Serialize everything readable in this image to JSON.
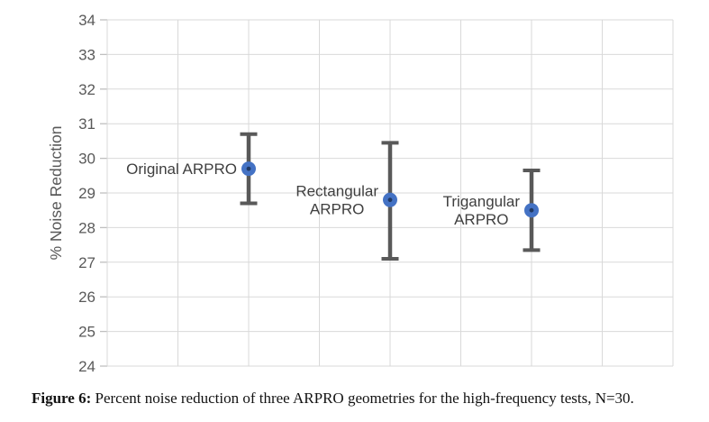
{
  "chart_data": {
    "type": "scatter",
    "title": "",
    "xlabel": "",
    "ylabel": "% Noise Reduction",
    "ylim": [
      24,
      34
    ],
    "ytick_step": 1,
    "xlim": [
      0,
      4
    ],
    "x_gridline_step": 0.5,
    "grid": true,
    "legend": "none",
    "series": [
      {
        "name": "Original ARPRO",
        "x": 1,
        "y": 29.7,
        "err_low": 28.7,
        "err_high": 30.7,
        "label_lines": [
          "Original ARPRO"
        ]
      },
      {
        "name": "Rectangular ARPRO",
        "x": 2,
        "y": 28.8,
        "err_low": 27.1,
        "err_high": 30.45,
        "label_lines": [
          "Rectangular",
          "ARPRO"
        ]
      },
      {
        "name": "Trigangular ARPRO",
        "x": 3,
        "y": 28.5,
        "err_low": 27.35,
        "err_high": 29.65,
        "label_lines": [
          "Trigangular",
          "ARPRO"
        ]
      }
    ],
    "colors": {
      "marker": "#4472C4",
      "marker_dot": "#1F3864",
      "error_bar": "#595959",
      "gridline": "#D9D9D9",
      "tick": "#BFBFBF",
      "axis_text": "#595959",
      "point_label": "#3F3F3F"
    }
  },
  "caption": {
    "prefix": "Figure 6:",
    "text": " Percent noise reduction of three ARPRO geometries for the high-frequency tests, N=30."
  }
}
